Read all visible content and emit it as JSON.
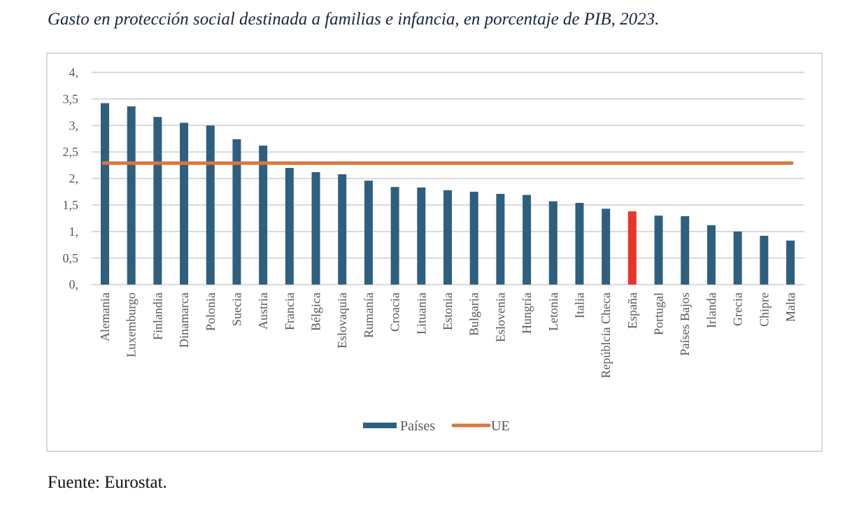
{
  "page": {
    "title": "Gasto en protección social destinada a familias e infancia, en porcentaje de PIB, 2023.",
    "source": "Fuente: Eurostat."
  },
  "colors": {
    "bar": "#2e5f7f",
    "highlight": "#e8352a",
    "eu_line": "#d9773f",
    "grid": "#d9d9d9",
    "text": "#595959"
  },
  "chart_data": {
    "type": "bar",
    "title": "Gasto en protección social destinada a familias e infancia, en porcentaje de PIB, 2023.",
    "xlabel": "",
    "ylabel": "",
    "ylim": [
      0,
      4
    ],
    "yticks": [
      0,
      0.5,
      1,
      1.5,
      2,
      2.5,
      3,
      3.5,
      4
    ],
    "ytick_labels": [
      "0,",
      "0,5",
      "1,",
      "1,5",
      "2,",
      "2,5",
      "3,",
      "3,5",
      "4,"
    ],
    "grid": true,
    "legend_position": "bottom",
    "categories": [
      "Alemania",
      "Luxemburgo",
      "Finlandia",
      "Dinamarca",
      "Polonia",
      "Suecia",
      "Austria",
      "Francia",
      "Bélgica",
      "Eslovaquia",
      "Rumanía",
      "Croacia",
      "Lituania",
      "Estonia",
      "Bulgaria",
      "Eslovenia",
      "Hungría",
      "Letonia",
      "Italia",
      "Repúblcia Checa",
      "España",
      "Portugal",
      "Países Bajos",
      "Irlanda",
      "Grecia",
      "Chipre",
      "Malta"
    ],
    "highlight_category": "España",
    "series": [
      {
        "name": "Países",
        "type": "bar",
        "values": [
          3.42,
          3.36,
          3.16,
          3.05,
          3.0,
          2.74,
          2.62,
          2.2,
          2.12,
          2.08,
          1.96,
          1.84,
          1.83,
          1.78,
          1.75,
          1.71,
          1.69,
          1.57,
          1.54,
          1.43,
          1.38,
          1.3,
          1.29,
          1.12,
          1.0,
          0.92,
          0.83
        ]
      },
      {
        "name": "UE",
        "type": "line",
        "value": 2.29
      }
    ],
    "legend": [
      {
        "label": "Países",
        "kind": "bar"
      },
      {
        "label": "UE",
        "kind": "line"
      }
    ]
  }
}
